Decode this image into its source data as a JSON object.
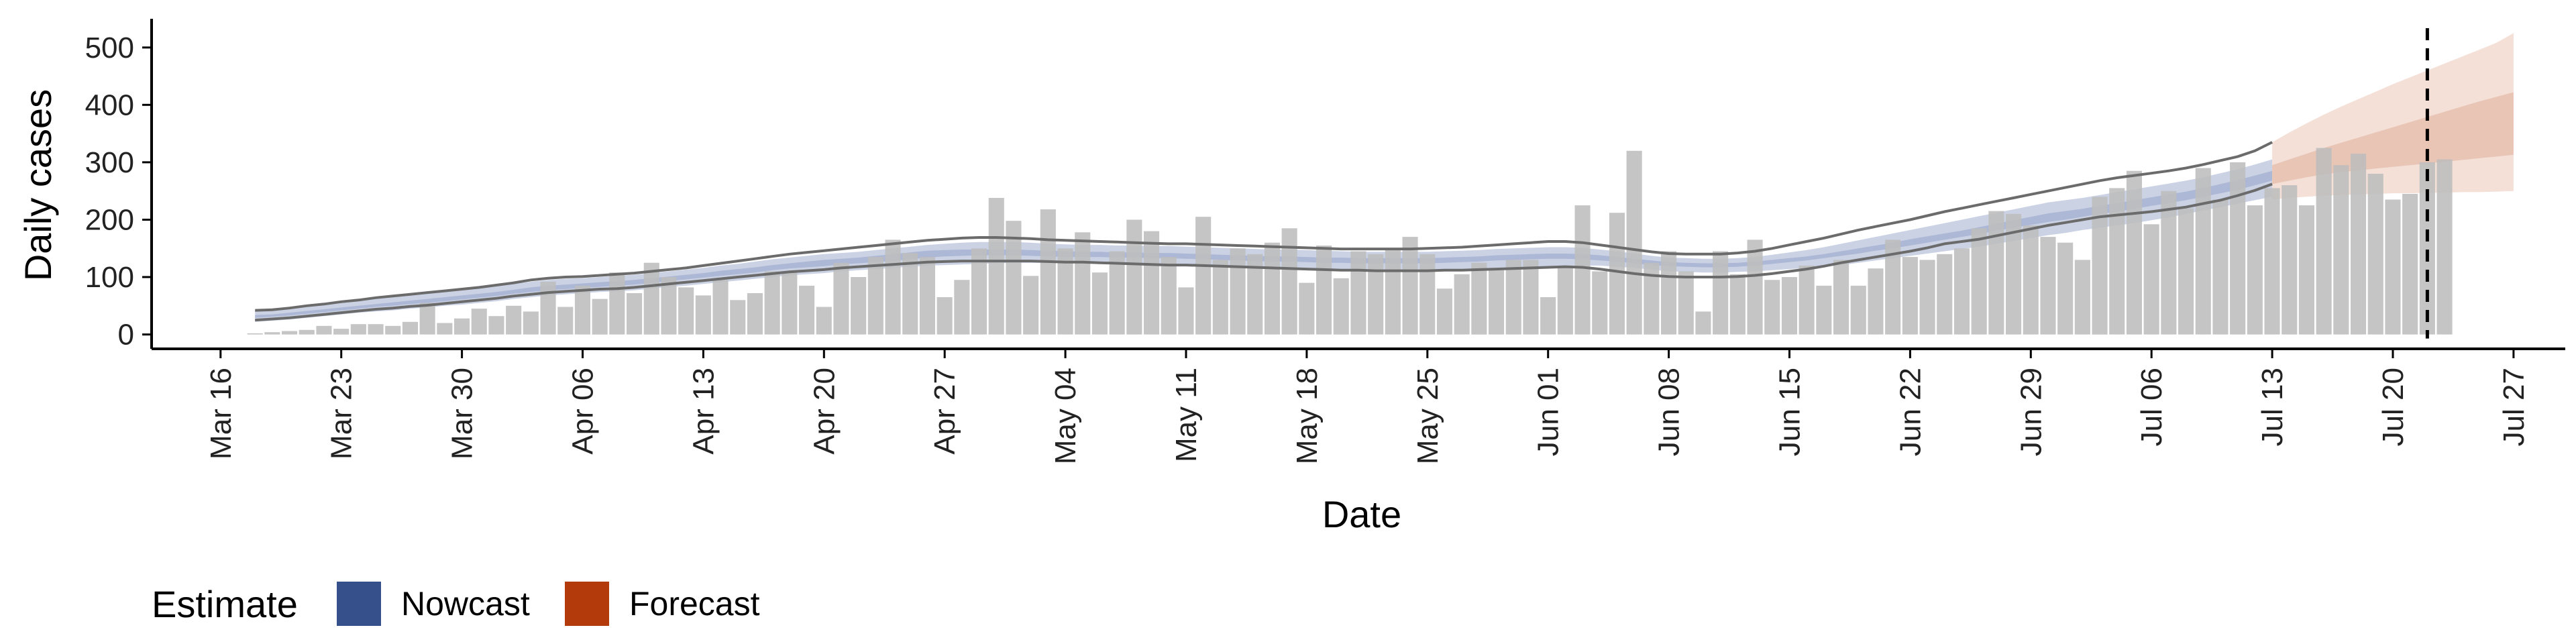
{
  "chart_data": {
    "type": "bar",
    "xlabel": "Date",
    "ylabel": "Daily cases",
    "ylim": [
      -25,
      550
    ],
    "xlim": [
      "2020-03-12",
      "2020-07-30"
    ],
    "y_ticks": [
      0,
      100,
      200,
      300,
      400,
      500
    ],
    "x_ticks": [
      {
        "date": "2020-03-16",
        "label": "Mar 16"
      },
      {
        "date": "2020-03-23",
        "label": "Mar 23"
      },
      {
        "date": "2020-03-30",
        "label": "Mar 30"
      },
      {
        "date": "2020-04-06",
        "label": "Apr 06"
      },
      {
        "date": "2020-04-13",
        "label": "Apr 13"
      },
      {
        "date": "2020-04-20",
        "label": "Apr 20"
      },
      {
        "date": "2020-04-27",
        "label": "Apr 27"
      },
      {
        "date": "2020-05-04",
        "label": "May 04"
      },
      {
        "date": "2020-05-11",
        "label": "May 11"
      },
      {
        "date": "2020-05-18",
        "label": "May 18"
      },
      {
        "date": "2020-05-25",
        "label": "May 25"
      },
      {
        "date": "2020-06-01",
        "label": "Jun 01"
      },
      {
        "date": "2020-06-08",
        "label": "Jun 08"
      },
      {
        "date": "2020-06-15",
        "label": "Jun 15"
      },
      {
        "date": "2020-06-22",
        "label": "Jun 22"
      },
      {
        "date": "2020-06-29",
        "label": "Jun 29"
      },
      {
        "date": "2020-07-06",
        "label": "Jul 06"
      },
      {
        "date": "2020-07-13",
        "label": "Jul 13"
      },
      {
        "date": "2020-07-20",
        "label": "Jul 20"
      },
      {
        "date": "2020-07-27",
        "label": "Jul 27"
      }
    ],
    "observed_cases": {
      "start_date": "2020-03-18",
      "values": [
        2,
        4,
        6,
        8,
        15,
        10,
        18,
        18,
        15,
        22,
        55,
        20,
        28,
        45,
        32,
        50,
        40,
        92,
        48,
        85,
        62,
        108,
        72,
        125,
        100,
        82,
        68,
        95,
        60,
        72,
        110,
        110,
        85,
        48,
        125,
        100,
        135,
        165,
        142,
        135,
        65,
        95,
        150,
        238,
        198,
        102,
        218,
        150,
        178,
        108,
        145,
        200,
        180,
        135,
        82,
        205,
        130,
        150,
        140,
        160,
        185,
        90,
        155,
        98,
        145,
        140,
        150,
        170,
        140,
        80,
        105,
        125,
        112,
        130,
        130,
        65,
        120,
        225,
        110,
        212,
        320,
        125,
        145,
        110,
        40,
        145,
        105,
        165,
        95,
        100,
        120,
        85,
        130,
        85,
        115,
        165,
        135,
        130,
        140,
        150,
        185,
        215,
        210,
        190,
        170,
        160,
        130,
        240,
        255,
        285,
        192,
        250,
        220,
        290,
        235,
        300,
        225,
        255,
        260,
        225,
        325,
        295,
        315,
        280,
        235,
        245,
        300,
        305
      ]
    },
    "nowcast_end_date": "2020-07-12",
    "nowcast_band_90": {
      "start_date": "2020-03-18",
      "lower": [
        22,
        24,
        26,
        29,
        32,
        35,
        38,
        40,
        42,
        45,
        47,
        50,
        52,
        55,
        58,
        62,
        65,
        68,
        70,
        72,
        74,
        75,
        77,
        80,
        83,
        85,
        88,
        91,
        94,
        97,
        100,
        103,
        105,
        107,
        110,
        112,
        114,
        116,
        118,
        120,
        121,
        122,
        123,
        124,
        125,
        125,
        125,
        124,
        124,
        124,
        123,
        123,
        122,
        122,
        121,
        120,
        119,
        118,
        117,
        116,
        116,
        115,
        114,
        114,
        113,
        113,
        113,
        113,
        113,
        114,
        114,
        115,
        116,
        117,
        118,
        119,
        120,
        120,
        120,
        118,
        116,
        113,
        110,
        109,
        108,
        108,
        109,
        110,
        112,
        114,
        116,
        118,
        121,
        125,
        129,
        133,
        137,
        141,
        145,
        149,
        153,
        158,
        163,
        168,
        173,
        177,
        182,
        186,
        190,
        194,
        199,
        204,
        210,
        216,
        222,
        228,
        234,
        240
      ],
      "upper": [
        40,
        41,
        44,
        48,
        51,
        55,
        58,
        62,
        65,
        68,
        71,
        74,
        77,
        80,
        84,
        88,
        92,
        95,
        97,
        98,
        100,
        102,
        104,
        107,
        110,
        113,
        116,
        120,
        123,
        127,
        131,
        134,
        137,
        140,
        142,
        144,
        147,
        150,
        153,
        156,
        158,
        160,
        161,
        161,
        161,
        160,
        158,
        157,
        156,
        156,
        155,
        155,
        154,
        154,
        153,
        152,
        151,
        150,
        149,
        148,
        148,
        147,
        146,
        145,
        144,
        144,
        144,
        144,
        144,
        145,
        146,
        147,
        149,
        150,
        151,
        152,
        152,
        151,
        148,
        145,
        141,
        137,
        134,
        133,
        132,
        132,
        133,
        135,
        139,
        143,
        147,
        152,
        158,
        164,
        170,
        176,
        182,
        188,
        194,
        200,
        206,
        212,
        218,
        224,
        230,
        234,
        238,
        243,
        248,
        253,
        258,
        263,
        268,
        274,
        281,
        288,
        296,
        305
      ]
    },
    "nowcast_band_50": {
      "start_date": "2020-03-18",
      "lower": [
        29,
        31,
        33,
        36,
        39,
        42,
        45,
        48,
        50,
        53,
        55,
        58,
        61,
        64,
        67,
        71,
        74,
        77,
        79,
        81,
        83,
        85,
        87,
        90,
        93,
        96,
        99,
        102,
        105,
        108,
        112,
        115,
        117,
        119,
        122,
        124,
        126,
        128,
        131,
        134,
        136,
        137,
        138,
        138,
        138,
        137,
        136,
        135,
        135,
        135,
        134,
        134,
        133,
        133,
        132,
        131,
        130,
        129,
        128,
        127,
        127,
        126,
        125,
        125,
        124,
        124,
        124,
        124,
        124,
        125,
        126,
        127,
        129,
        130,
        131,
        132,
        132,
        131,
        129,
        127,
        124,
        121,
        119,
        118,
        117,
        117,
        118,
        120,
        123,
        126,
        129,
        133,
        137,
        141,
        146,
        150,
        155,
        160,
        165,
        170,
        175,
        181,
        186,
        191,
        196,
        200,
        205,
        210,
        214,
        219,
        224,
        229,
        234,
        240,
        246,
        252,
        260,
        268
      ],
      "upper": [
        34,
        35,
        38,
        41,
        44,
        47,
        50,
        53,
        56,
        59,
        62,
        65,
        68,
        71,
        74,
        78,
        82,
        85,
        87,
        89,
        91,
        93,
        95,
        98,
        101,
        104,
        107,
        111,
        114,
        117,
        121,
        124,
        127,
        130,
        132,
        134,
        137,
        140,
        143,
        146,
        147,
        148,
        148,
        148,
        148,
        147,
        146,
        145,
        144,
        144,
        143,
        143,
        142,
        142,
        141,
        140,
        139,
        138,
        137,
        136,
        136,
        135,
        134,
        134,
        133,
        133,
        133,
        133,
        133,
        134,
        135,
        136,
        138,
        139,
        140,
        141,
        141,
        140,
        138,
        135,
        132,
        129,
        126,
        125,
        124,
        124,
        125,
        127,
        130,
        133,
        136,
        140,
        145,
        150,
        155,
        160,
        166,
        171,
        176,
        181,
        187,
        193,
        199,
        205,
        211,
        215,
        219,
        224,
        229,
        234,
        239,
        244,
        249,
        255,
        262,
        269,
        277,
        285
      ]
    },
    "nowcast_outline": {
      "start_date": "2020-03-18",
      "lower": [
        25,
        27,
        29,
        32,
        35,
        38,
        41,
        44,
        46,
        49,
        51,
        54,
        57,
        60,
        63,
        67,
        70,
        73,
        75,
        77,
        79,
        80,
        82,
        85,
        88,
        91,
        94,
        97,
        100,
        103,
        106,
        109,
        111,
        113,
        116,
        118,
        120,
        122,
        124,
        126,
        127,
        128,
        128,
        128,
        128,
        128,
        127,
        126,
        126,
        125,
        124,
        123,
        122,
        121,
        121,
        120,
        119,
        118,
        117,
        116,
        115,
        114,
        113,
        112,
        112,
        111,
        111,
        111,
        111,
        112,
        112,
        113,
        114,
        115,
        116,
        117,
        118,
        117,
        114,
        110,
        106,
        103,
        101,
        100,
        100,
        100,
        101,
        103,
        106,
        110,
        114,
        119,
        125,
        130,
        135,
        140,
        145,
        151,
        158,
        162,
        166,
        172,
        178,
        184,
        190,
        195,
        200,
        205,
        208,
        211,
        214,
        218,
        222,
        228,
        234,
        242,
        251,
        262
      ],
      "upper": [
        42,
        43,
        46,
        50,
        53,
        57,
        60,
        64,
        67,
        70,
        73,
        76,
        79,
        82,
        86,
        90,
        95,
        98,
        100,
        101,
        103,
        105,
        107,
        110,
        113,
        116,
        120,
        124,
        128,
        132,
        136,
        140,
        143,
        146,
        149,
        152,
        155,
        158,
        161,
        164,
        166,
        168,
        169,
        169,
        168,
        167,
        165,
        164,
        163,
        162,
        161,
        160,
        159,
        158,
        158,
        157,
        156,
        155,
        154,
        153,
        152,
        151,
        150,
        149,
        149,
        149,
        149,
        149,
        150,
        151,
        152,
        154,
        156,
        158,
        160,
        162,
        162,
        160,
        156,
        152,
        148,
        144,
        141,
        140,
        140,
        140,
        142,
        145,
        150,
        156,
        162,
        168,
        175,
        182,
        188,
        194,
        200,
        207,
        214,
        220,
        226,
        232,
        238,
        244,
        250,
        256,
        262,
        268,
        273,
        277,
        281,
        285,
        290,
        296,
        303,
        310,
        320,
        335
      ]
    },
    "forecast_band_90": {
      "start_date": "2020-07-13",
      "lower": [
        235,
        238,
        240,
        242,
        243,
        244,
        245,
        246,
        246,
        247,
        247,
        248,
        248,
        249,
        250
      ],
      "upper": [
        335,
        352,
        368,
        383,
        397,
        410,
        423,
        436,
        448,
        460,
        472,
        484,
        496,
        508,
        525
      ]
    },
    "forecast_band_50": {
      "start_date": "2020-07-13",
      "lower": [
        262,
        268,
        274,
        279,
        283,
        286,
        289,
        292,
        295,
        298,
        301,
        304,
        307,
        310,
        313
      ],
      "upper": [
        295,
        305,
        315,
        325,
        334,
        343,
        352,
        361,
        370,
        379,
        388,
        397,
        406,
        414,
        422
      ]
    },
    "forecast_date": "2020-07-22",
    "legend": {
      "title": "Estimate",
      "position": "bottom-left",
      "entries": [
        {
          "label": "Nowcast",
          "color": "#35508b"
        },
        {
          "label": "Forecast",
          "color": "#b33a0a"
        }
      ]
    },
    "colors": {
      "bar": "#bdbdbd",
      "nowcast_band": "#c2cadf",
      "nowcast_band_inner": "#a9b5d3",
      "nowcast_outline": "#6b6b6b",
      "forecast_band": "#f3ddd3",
      "forecast_band_inner": "#e7c2b1",
      "axis": "#000000",
      "tick_text": "#222222",
      "forecast_line": "#000000"
    },
    "grid": false
  }
}
